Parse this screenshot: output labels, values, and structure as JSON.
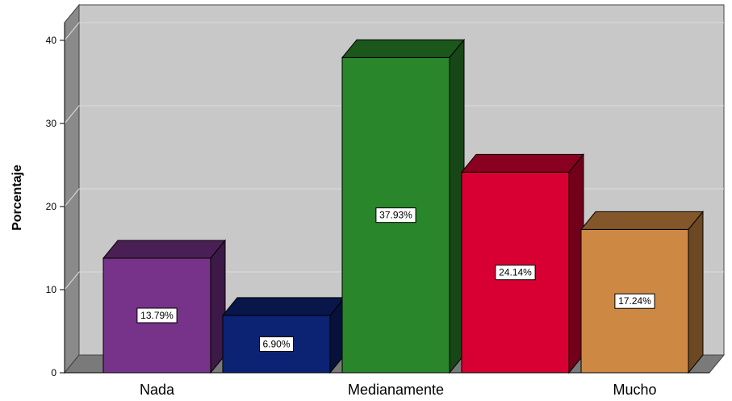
{
  "chart_data": {
    "type": "bar",
    "style": "3d",
    "ylabel": "Porcentaje",
    "ylim": [
      0,
      42
    ],
    "yticks": [
      0,
      10,
      20,
      30,
      40
    ],
    "grid": true,
    "legend": "none",
    "x_tick_labels": [
      "Nada",
      "Medianamente",
      "Mucho"
    ],
    "bars": [
      {
        "value": 13.79,
        "label": "13.79%",
        "color": "#763389",
        "top_color": "#4a1f56",
        "side_color": "#3d1947"
      },
      {
        "value": 6.9,
        "label": "6.90%",
        "color": "#0c2374",
        "top_color": "#08164a",
        "side_color": "#06123c"
      },
      {
        "value": 37.93,
        "label": "37.93%",
        "color": "#2a862a",
        "top_color": "#1b561b",
        "side_color": "#174717"
      },
      {
        "value": 24.14,
        "label": "24.14%",
        "color": "#d80032",
        "top_color": "#8a0020",
        "side_color": "#72001b"
      },
      {
        "value": 17.24,
        "label": "17.24%",
        "color": "#cd8843",
        "top_color": "#83572a",
        "side_color": "#6c4823"
      }
    ],
    "colors": {
      "plot_background": "#c8c8c8",
      "back_wall_side": "#8a8a8a",
      "floor": "#7a7a7a",
      "gridline": "#dcdcdc"
    }
  }
}
